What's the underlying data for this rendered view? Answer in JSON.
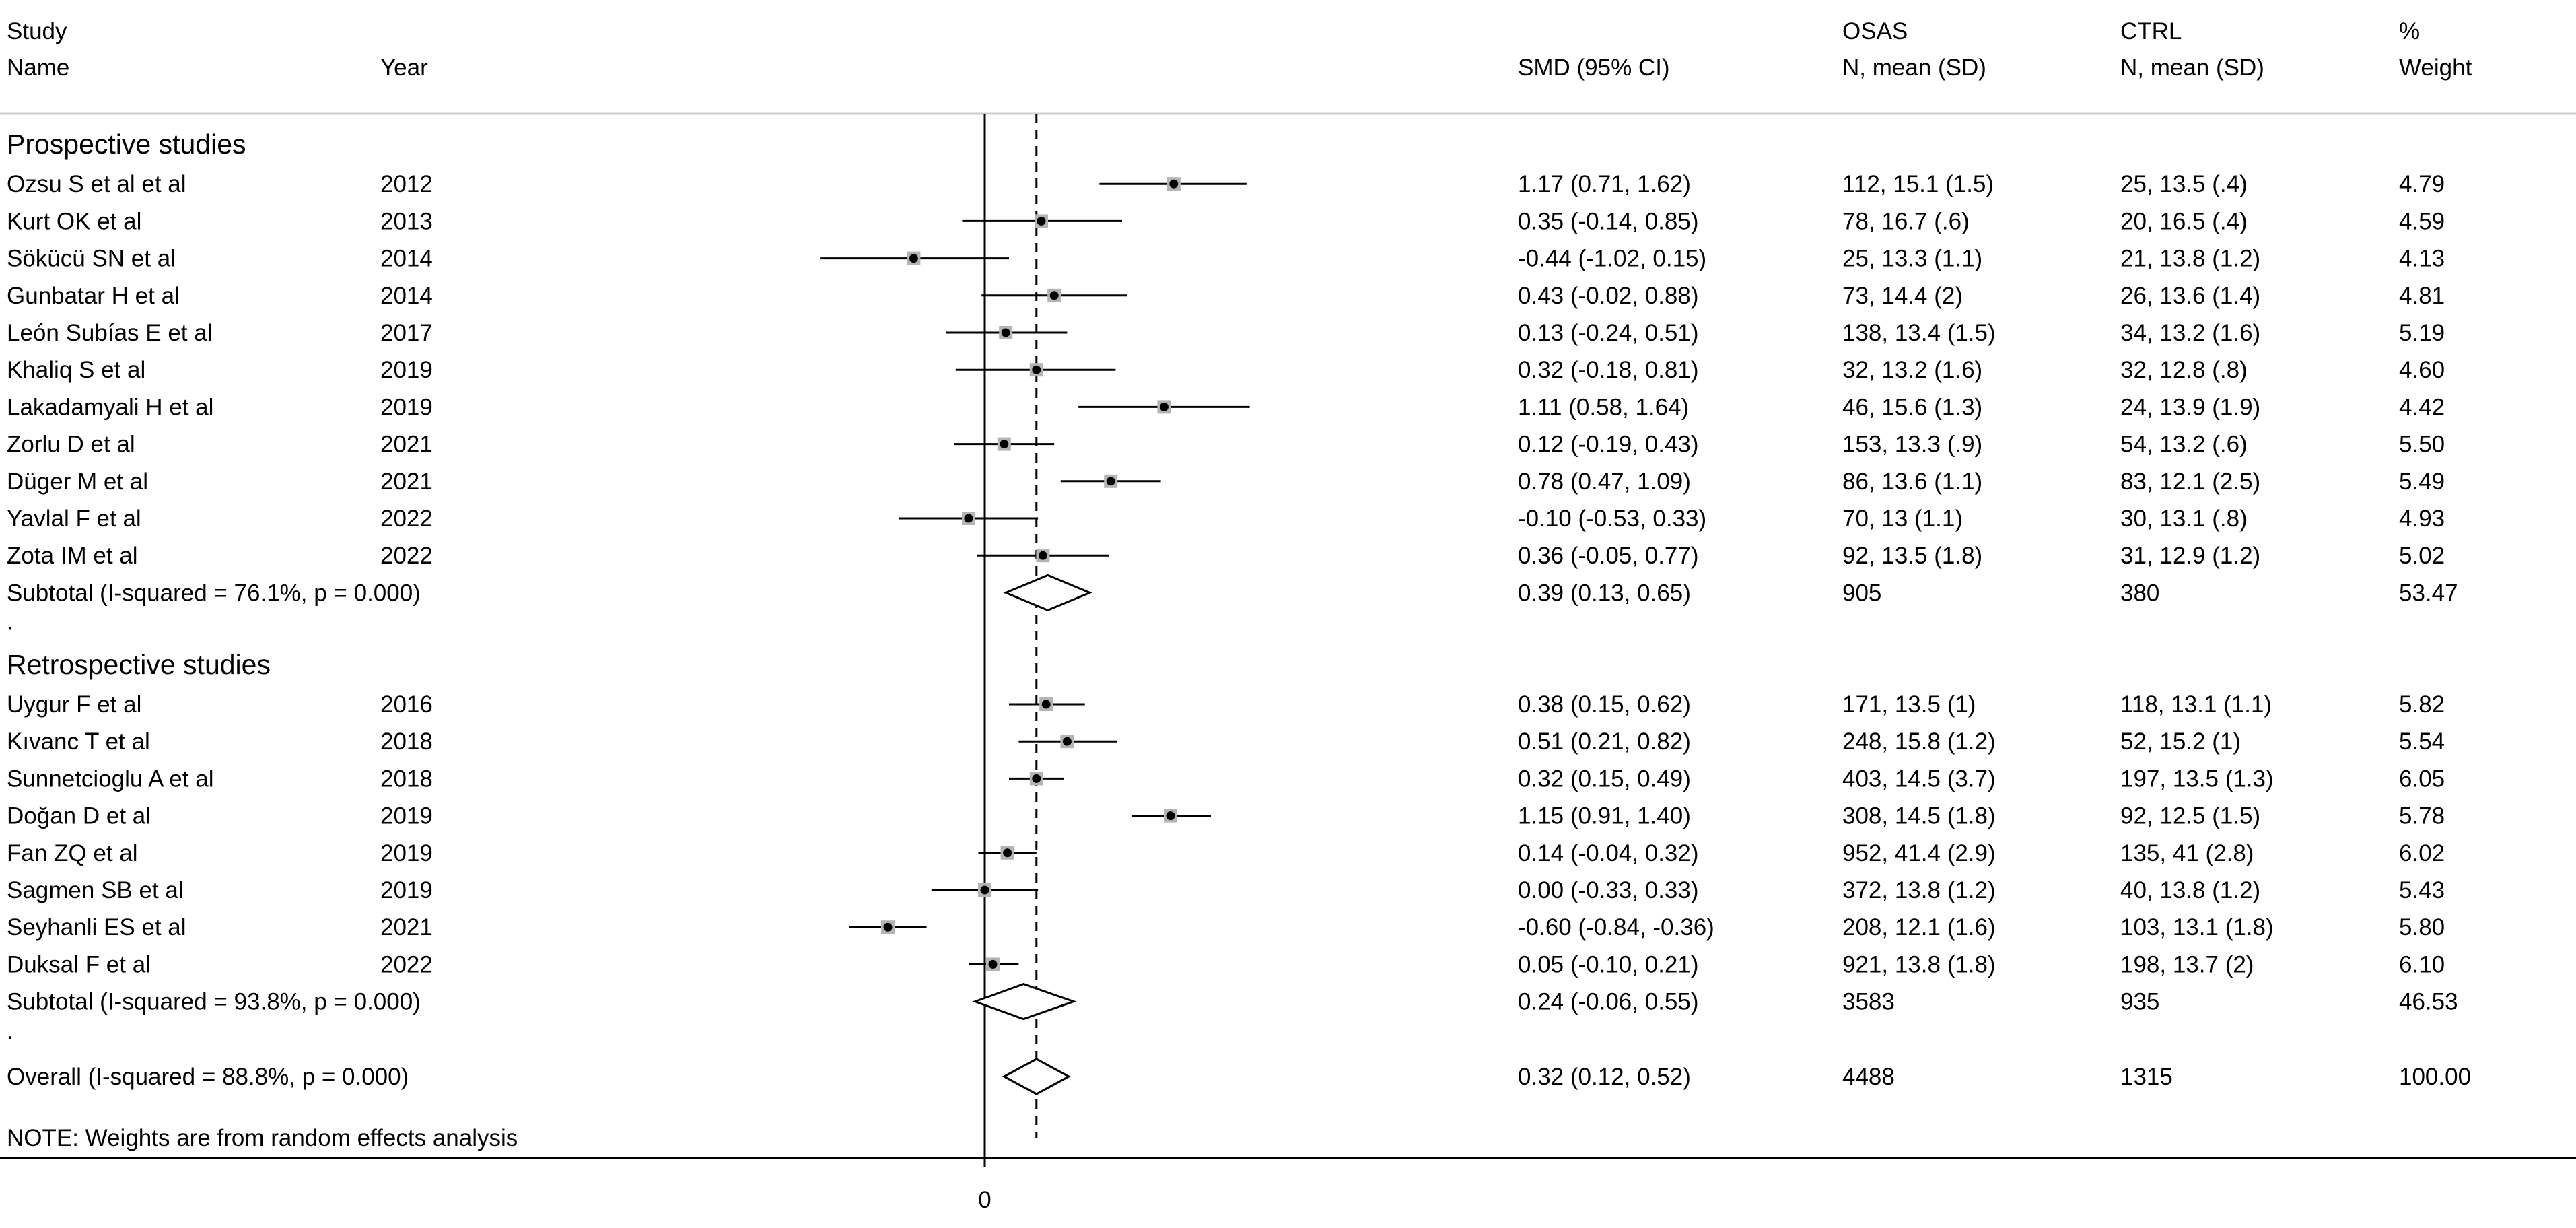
{
  "chart_data": {
    "type": "forest",
    "effect_measure": "SMD",
    "headers": {
      "study_line1": "Study",
      "study_line2": "Name",
      "year": "Year",
      "smd": "SMD (95% CI)",
      "osas_line1": "OSAS",
      "osas_line2": "N, mean (SD)",
      "ctrl_line1": "CTRL",
      "ctrl_line2": "N, mean (SD)",
      "weight_line1": "%",
      "weight_line2": "Weight"
    },
    "x_axis": {
      "tick_label": "0",
      "null_value": 0,
      "overall_effect": 0.32,
      "range": [
        -1.15,
        1.9
      ]
    },
    "groups": [
      {
        "title": "Prospective studies",
        "studies": [
          {
            "name": "Ozsu S et al et al",
            "year": "2012",
            "smd": 1.17,
            "lo": 0.71,
            "hi": 1.62,
            "ci_text": "1.17 (0.71, 1.62)",
            "osas": "112, 15.1 (1.5)",
            "ctrl": "25, 13.5 (.4)",
            "weight": "4.79"
          },
          {
            "name": "Kurt OK  et al",
            "year": "2013",
            "smd": 0.35,
            "lo": -0.14,
            "hi": 0.85,
            "ci_text": "0.35 (-0.14, 0.85)",
            "osas": "78, 16.7 (.6)",
            "ctrl": "20, 16.5 (.4)",
            "weight": "4.59"
          },
          {
            "name": "Sökücü SN  et al",
            "year": "2014",
            "smd": -0.44,
            "lo": -1.02,
            "hi": 0.15,
            "ci_text": "-0.44 (-1.02, 0.15)",
            "osas": "25, 13.3 (1.1)",
            "ctrl": "21, 13.8 (1.2)",
            "weight": "4.13"
          },
          {
            "name": "Gunbatar H  et al",
            "year": "2014",
            "smd": 0.43,
            "lo": -0.02,
            "hi": 0.88,
            "ci_text": "0.43 (-0.02, 0.88)",
            "osas": "73, 14.4 (2)",
            "ctrl": "26, 13.6 (1.4)",
            "weight": "4.81"
          },
          {
            "name": "León Subías E  et al",
            "year": "2017",
            "smd": 0.13,
            "lo": -0.24,
            "hi": 0.51,
            "ci_text": "0.13 (-0.24, 0.51)",
            "osas": "138, 13.4 (1.5)",
            "ctrl": "34, 13.2 (1.6)",
            "weight": "5.19"
          },
          {
            "name": "Khaliq S  et al",
            "year": "2019",
            "smd": 0.32,
            "lo": -0.18,
            "hi": 0.81,
            "ci_text": "0.32 (-0.18, 0.81)",
            "osas": "32, 13.2 (1.6)",
            "ctrl": "32, 12.8 (.8)",
            "weight": "4.60"
          },
          {
            "name": "Lakadamyali H  et al",
            "year": "2019",
            "smd": 1.11,
            "lo": 0.58,
            "hi": 1.64,
            "ci_text": "1.11 (0.58, 1.64)",
            "osas": "46, 15.6 (1.3)",
            "ctrl": "24, 13.9 (1.9)",
            "weight": "4.42"
          },
          {
            "name": "Zorlu D  et al",
            "year": "2021",
            "smd": 0.12,
            "lo": -0.19,
            "hi": 0.43,
            "ci_text": "0.12 (-0.19, 0.43)",
            "osas": "153, 13.3 (.9)",
            "ctrl": "54, 13.2 (.6)",
            "weight": "5.50"
          },
          {
            "name": "Düger M  et al",
            "year": "2021",
            "smd": 0.78,
            "lo": 0.47,
            "hi": 1.09,
            "ci_text": "0.78 (0.47, 1.09)",
            "osas": "86, 13.6 (1.1)",
            "ctrl": "83, 12.1 (2.5)",
            "weight": "5.49"
          },
          {
            "name": "Yavlal F  et al",
            "year": "2022",
            "smd": -0.1,
            "lo": -0.53,
            "hi": 0.33,
            "ci_text": "-0.10 (-0.53, 0.33)",
            "osas": "70, 13 (1.1)",
            "ctrl": "30, 13.1 (.8)",
            "weight": "4.93"
          },
          {
            "name": "Zota IM  et al",
            "year": "2022",
            "smd": 0.36,
            "lo": -0.05,
            "hi": 0.77,
            "ci_text": "0.36 (-0.05, 0.77)",
            "osas": "92, 13.5 (1.8)",
            "ctrl": "31, 12.9 (1.2)",
            "weight": "5.02"
          }
        ],
        "subtotal": {
          "label": "Subtotal  (I-squared = 76.1%, p = 0.000)",
          "smd": 0.39,
          "lo": 0.13,
          "hi": 0.65,
          "ci_text": "0.39 (0.13, 0.65)",
          "osas": "905",
          "ctrl": "380",
          "weight": "53.47"
        }
      },
      {
        "title": "Retrospective studies",
        "studies": [
          {
            "name": "Uygur F  et al",
            "year": "2016",
            "smd": 0.38,
            "lo": 0.15,
            "hi": 0.62,
            "ci_text": "0.38 (0.15, 0.62)",
            "osas": "171, 13.5 (1)",
            "ctrl": "118, 13.1 (1.1)",
            "weight": "5.82"
          },
          {
            "name": "Kıvanc T  et al",
            "year": "2018",
            "smd": 0.51,
            "lo": 0.21,
            "hi": 0.82,
            "ci_text": "0.51 (0.21, 0.82)",
            "osas": "248, 15.8 (1.2)",
            "ctrl": "52, 15.2 (1)",
            "weight": "5.54"
          },
          {
            "name": "Sunnetcioglu A  et al",
            "year": "2018",
            "smd": 0.32,
            "lo": 0.15,
            "hi": 0.49,
            "ci_text": "0.32 (0.15, 0.49)",
            "osas": "403, 14.5 (3.7)",
            "ctrl": "197, 13.5 (1.3)",
            "weight": "6.05"
          },
          {
            "name": "Doğan D  et al",
            "year": "2019",
            "smd": 1.15,
            "lo": 0.91,
            "hi": 1.4,
            "ci_text": "1.15 (0.91, 1.40)",
            "osas": "308, 14.5 (1.8)",
            "ctrl": "92, 12.5 (1.5)",
            "weight": "5.78"
          },
          {
            "name": "Fan ZQ  et al",
            "year": "2019",
            "smd": 0.14,
            "lo": -0.04,
            "hi": 0.32,
            "ci_text": "0.14 (-0.04, 0.32)",
            "osas": "952, 41.4 (2.9)",
            "ctrl": "135, 41 (2.8)",
            "weight": "6.02"
          },
          {
            "name": "Sagmen SB  et al",
            "year": "2019",
            "smd": 0.0,
            "lo": -0.33,
            "hi": 0.33,
            "ci_text": "0.00 (-0.33, 0.33)",
            "osas": "372, 13.8 (1.2)",
            "ctrl": "40, 13.8 (1.2)",
            "weight": "5.43"
          },
          {
            "name": "Seyhanli ES  et al",
            "year": "2021",
            "smd": -0.6,
            "lo": -0.84,
            "hi": -0.36,
            "ci_text": "-0.60 (-0.84, -0.36)",
            "osas": "208, 12.1 (1.6)",
            "ctrl": "103, 13.1 (1.8)",
            "weight": "5.80"
          },
          {
            "name": "Duksal F  et al",
            "year": "2022",
            "smd": 0.05,
            "lo": -0.1,
            "hi": 0.21,
            "ci_text": "0.05 (-0.10, 0.21)",
            "osas": "921, 13.8 (1.8)",
            "ctrl": "198, 13.7 (2)",
            "weight": "6.10"
          }
        ],
        "subtotal": {
          "label": "Subtotal  (I-squared = 93.8%, p = 0.000)",
          "smd": 0.24,
          "lo": -0.06,
          "hi": 0.55,
          "ci_text": "0.24 (-0.06, 0.55)",
          "osas": "3583",
          "ctrl": "935",
          "weight": "46.53"
        }
      }
    ],
    "group_separator": ".",
    "overall": {
      "label": "Overall  (I-squared = 88.8%, p = 0.000)",
      "smd": 0.32,
      "lo": 0.12,
      "hi": 0.52,
      "ci_text": "0.32 (0.12, 0.52)",
      "osas": "4488",
      "ctrl": "1315",
      "weight": "100.00"
    },
    "note": "NOTE: Weights are from random effects analysis"
  }
}
